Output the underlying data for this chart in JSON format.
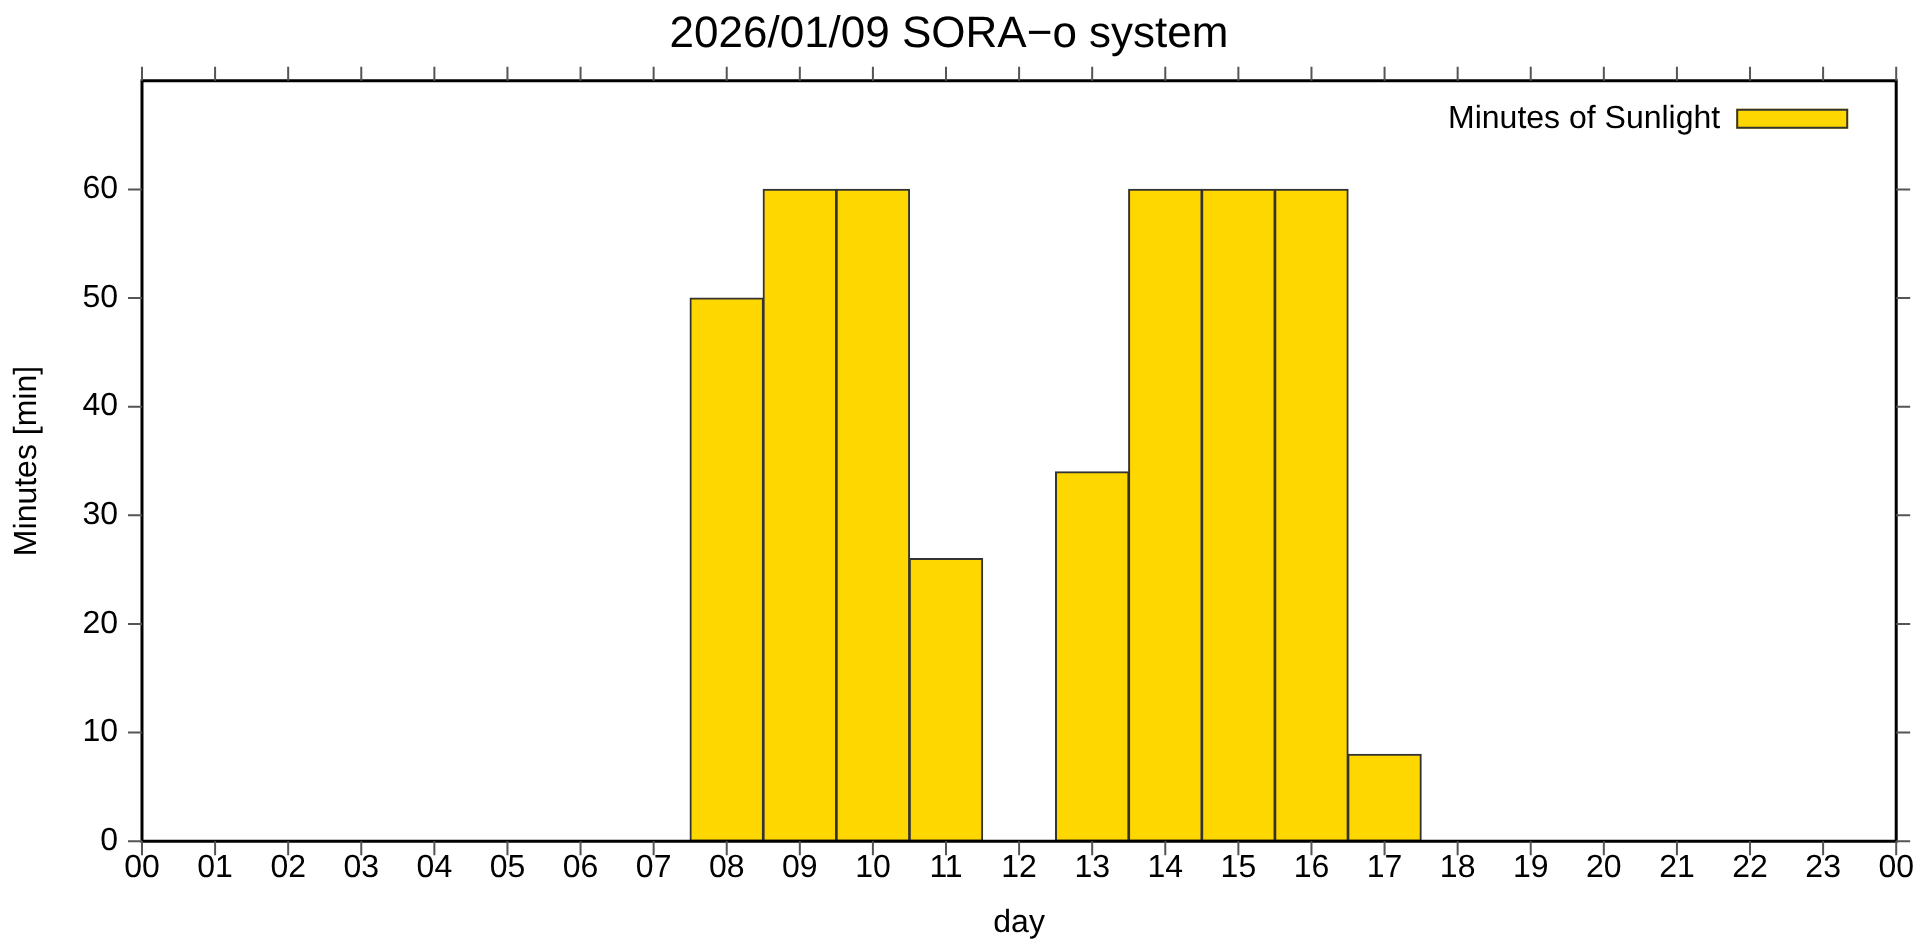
{
  "chart_data": {
    "type": "bar",
    "title": "2026/01/09 SORA−o system",
    "xlabel": "day",
    "ylabel": "Minutes [min]",
    "x": [
      8,
      9,
      10,
      11,
      12,
      13,
      14,
      15,
      16,
      17
    ],
    "series": [
      {
        "name": "Minutes of Sunlight",
        "color": "#ffd700",
        "values": [
          50,
          60,
          60,
          26,
          0,
          34,
          60,
          60,
          60,
          8
        ]
      }
    ],
    "xlim": [
      0,
      24
    ],
    "xticks": [
      {
        "value": 0,
        "label": "00"
      },
      {
        "value": 1,
        "label": "01"
      },
      {
        "value": 2,
        "label": "02"
      },
      {
        "value": 3,
        "label": "03"
      },
      {
        "value": 4,
        "label": "04"
      },
      {
        "value": 5,
        "label": "05"
      },
      {
        "value": 6,
        "label": "06"
      },
      {
        "value": 7,
        "label": "07"
      },
      {
        "value": 8,
        "label": "08"
      },
      {
        "value": 9,
        "label": "09"
      },
      {
        "value": 10,
        "label": "10"
      },
      {
        "value": 11,
        "label": "11"
      },
      {
        "value": 12,
        "label": "12"
      },
      {
        "value": 13,
        "label": "13"
      },
      {
        "value": 14,
        "label": "14"
      },
      {
        "value": 15,
        "label": "15"
      },
      {
        "value": 16,
        "label": "16"
      },
      {
        "value": 17,
        "label": "17"
      },
      {
        "value": 18,
        "label": "18"
      },
      {
        "value": 19,
        "label": "19"
      },
      {
        "value": 20,
        "label": "20"
      },
      {
        "value": 21,
        "label": "21"
      },
      {
        "value": 22,
        "label": "22"
      },
      {
        "value": 23,
        "label": "23"
      },
      {
        "value": 24,
        "label": "00"
      }
    ],
    "ylim": [
      0,
      70
    ],
    "yticks": [
      0,
      10,
      20,
      30,
      40,
      50,
      60
    ],
    "grid": false,
    "legend": "top right"
  }
}
